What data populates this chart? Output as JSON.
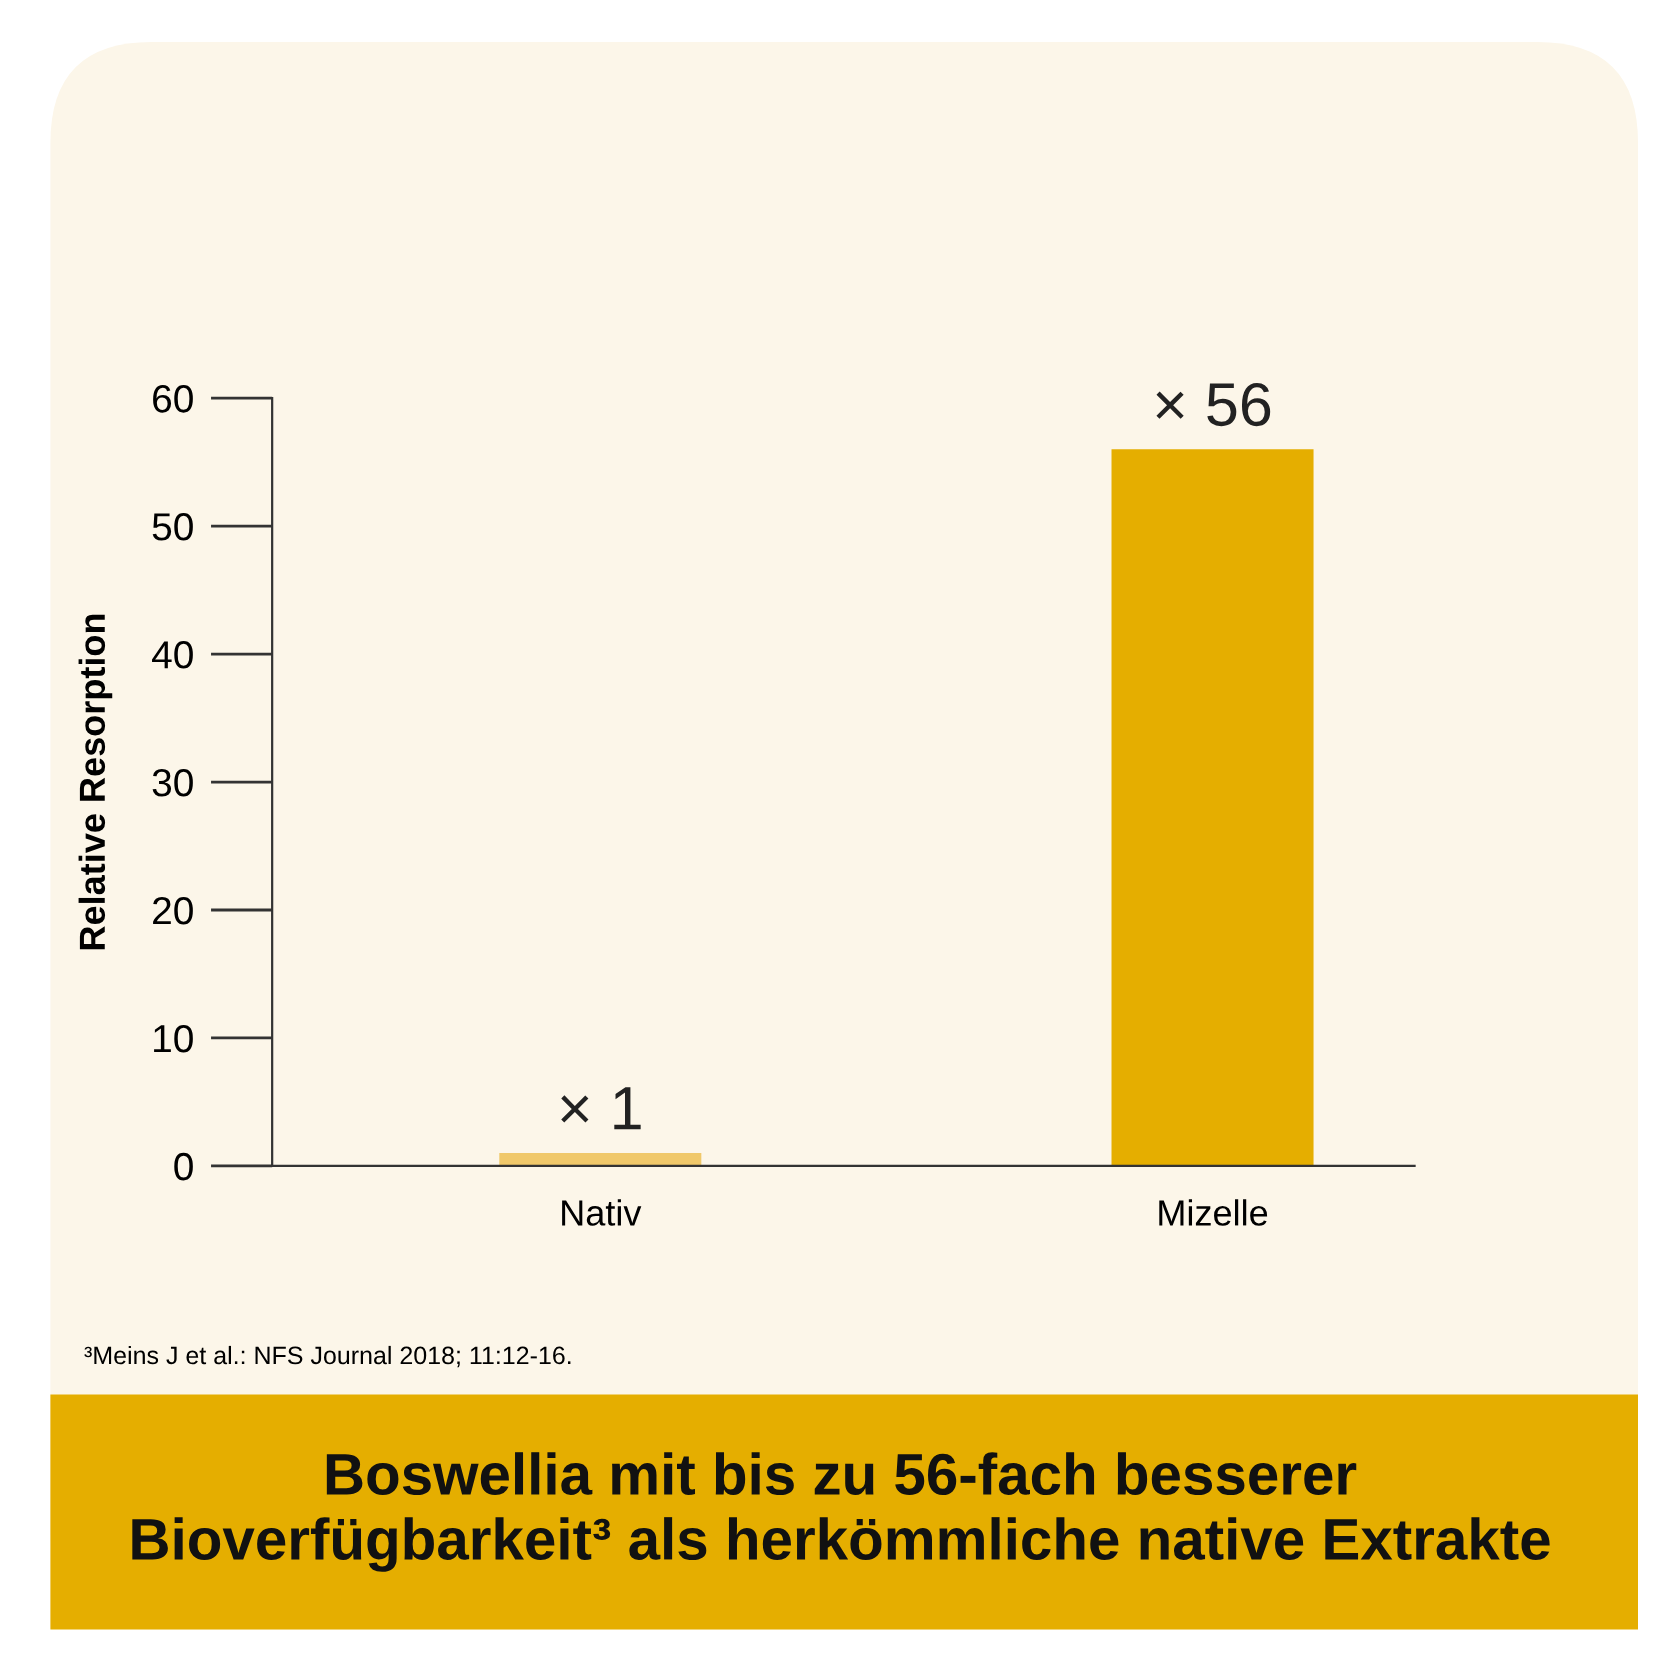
{
  "chart_data": {
    "type": "bar",
    "title": "Boswellia mit bis zu 56-fach besserer\nBioverfügbarkeit³ als herkömmliche native Extrakte",
    "ylabel": "Relative Resorption",
    "categories": [
      "Nativ",
      "Mizelle"
    ],
    "values": [
      1,
      56
    ],
    "colors": [
      "#f0c86a",
      "#e5ae00"
    ],
    "value_labels": [
      "× 1",
      "× 56"
    ],
    "ylim": [
      0,
      60
    ],
    "yticks": [
      0,
      10,
      20,
      30,
      40,
      50,
      60
    ],
    "grid": false,
    "legend": false,
    "annotations": [
      "³Meins J et al.: NFS Journal 2018; 11:12-16."
    ]
  }
}
